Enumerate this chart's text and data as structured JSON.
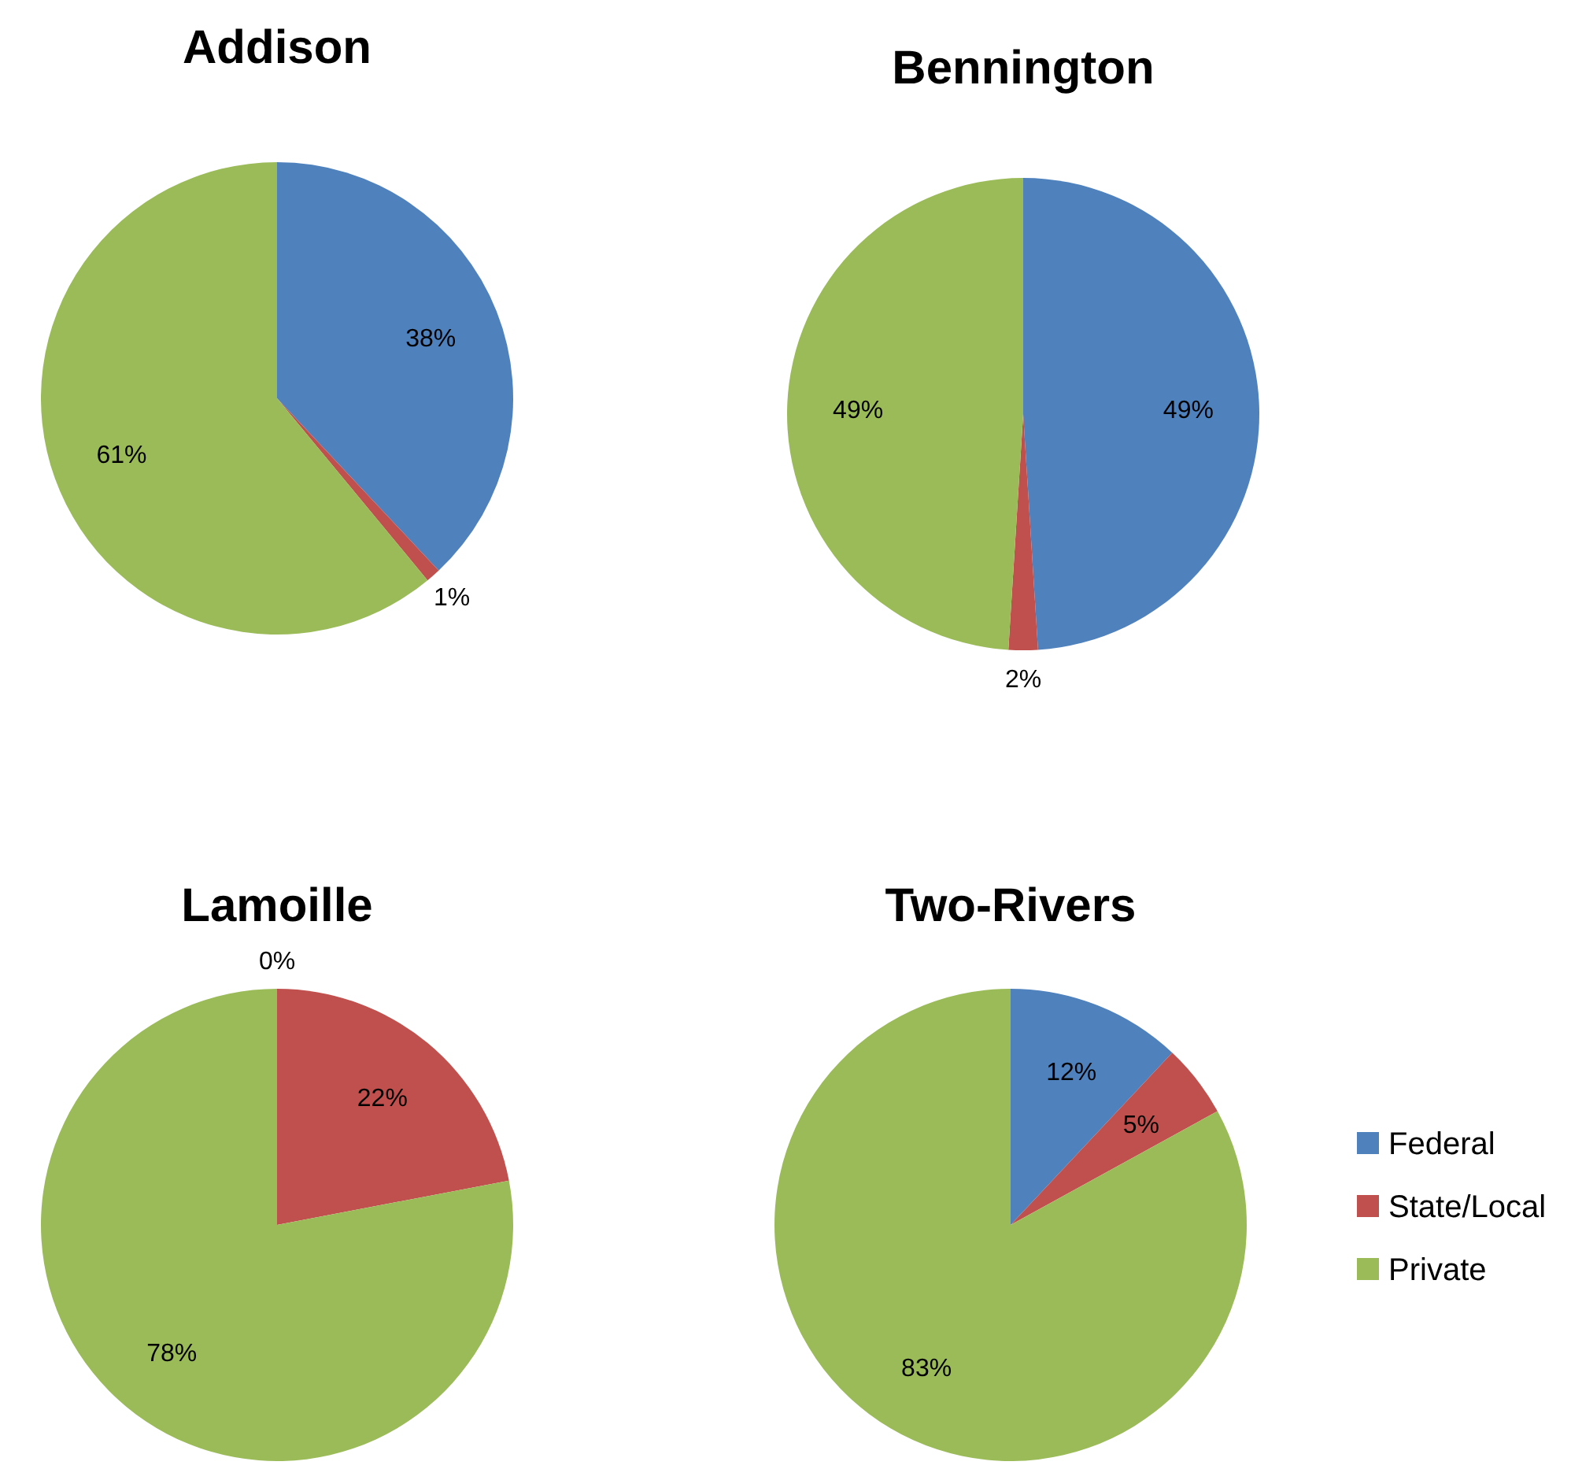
{
  "chart_data": [
    {
      "type": "pie",
      "title": "Addison",
      "categories": [
        null,
        null,
        null
      ],
      "values": [
        38,
        1,
        61
      ],
      "colors": [
        "#4f81bd",
        "#c0504d",
        "#9bbb59"
      ],
      "value_labels": [
        "38%",
        "1%",
        "61%"
      ]
    },
    {
      "type": "pie",
      "title": "Bennington",
      "categories": [
        null,
        null,
        null
      ],
      "values": [
        49,
        2,
        49
      ],
      "colors": [
        "#4f81bd",
        "#c0504d",
        "#9bbb59"
      ],
      "value_labels": [
        "49%",
        "2%",
        "49%"
      ]
    },
    {
      "type": "pie",
      "title": "Lamoille",
      "categories": [
        null,
        null,
        null
      ],
      "values": [
        0,
        22,
        78
      ],
      "colors": [
        "#4f81bd",
        "#c0504d",
        "#9bbb59"
      ],
      "value_labels": [
        "0%",
        "22%",
        "78%"
      ]
    },
    {
      "type": "pie",
      "title": "Two-Rivers",
      "categories": [
        "Federal",
        "State/Local",
        "Private"
      ],
      "values": [
        12,
        5,
        83
      ],
      "colors": [
        "#4f81bd",
        "#c0504d",
        "#9bbb59"
      ],
      "value_labels": [
        "12%",
        "5%",
        "83%"
      ],
      "legend": "right"
    }
  ]
}
